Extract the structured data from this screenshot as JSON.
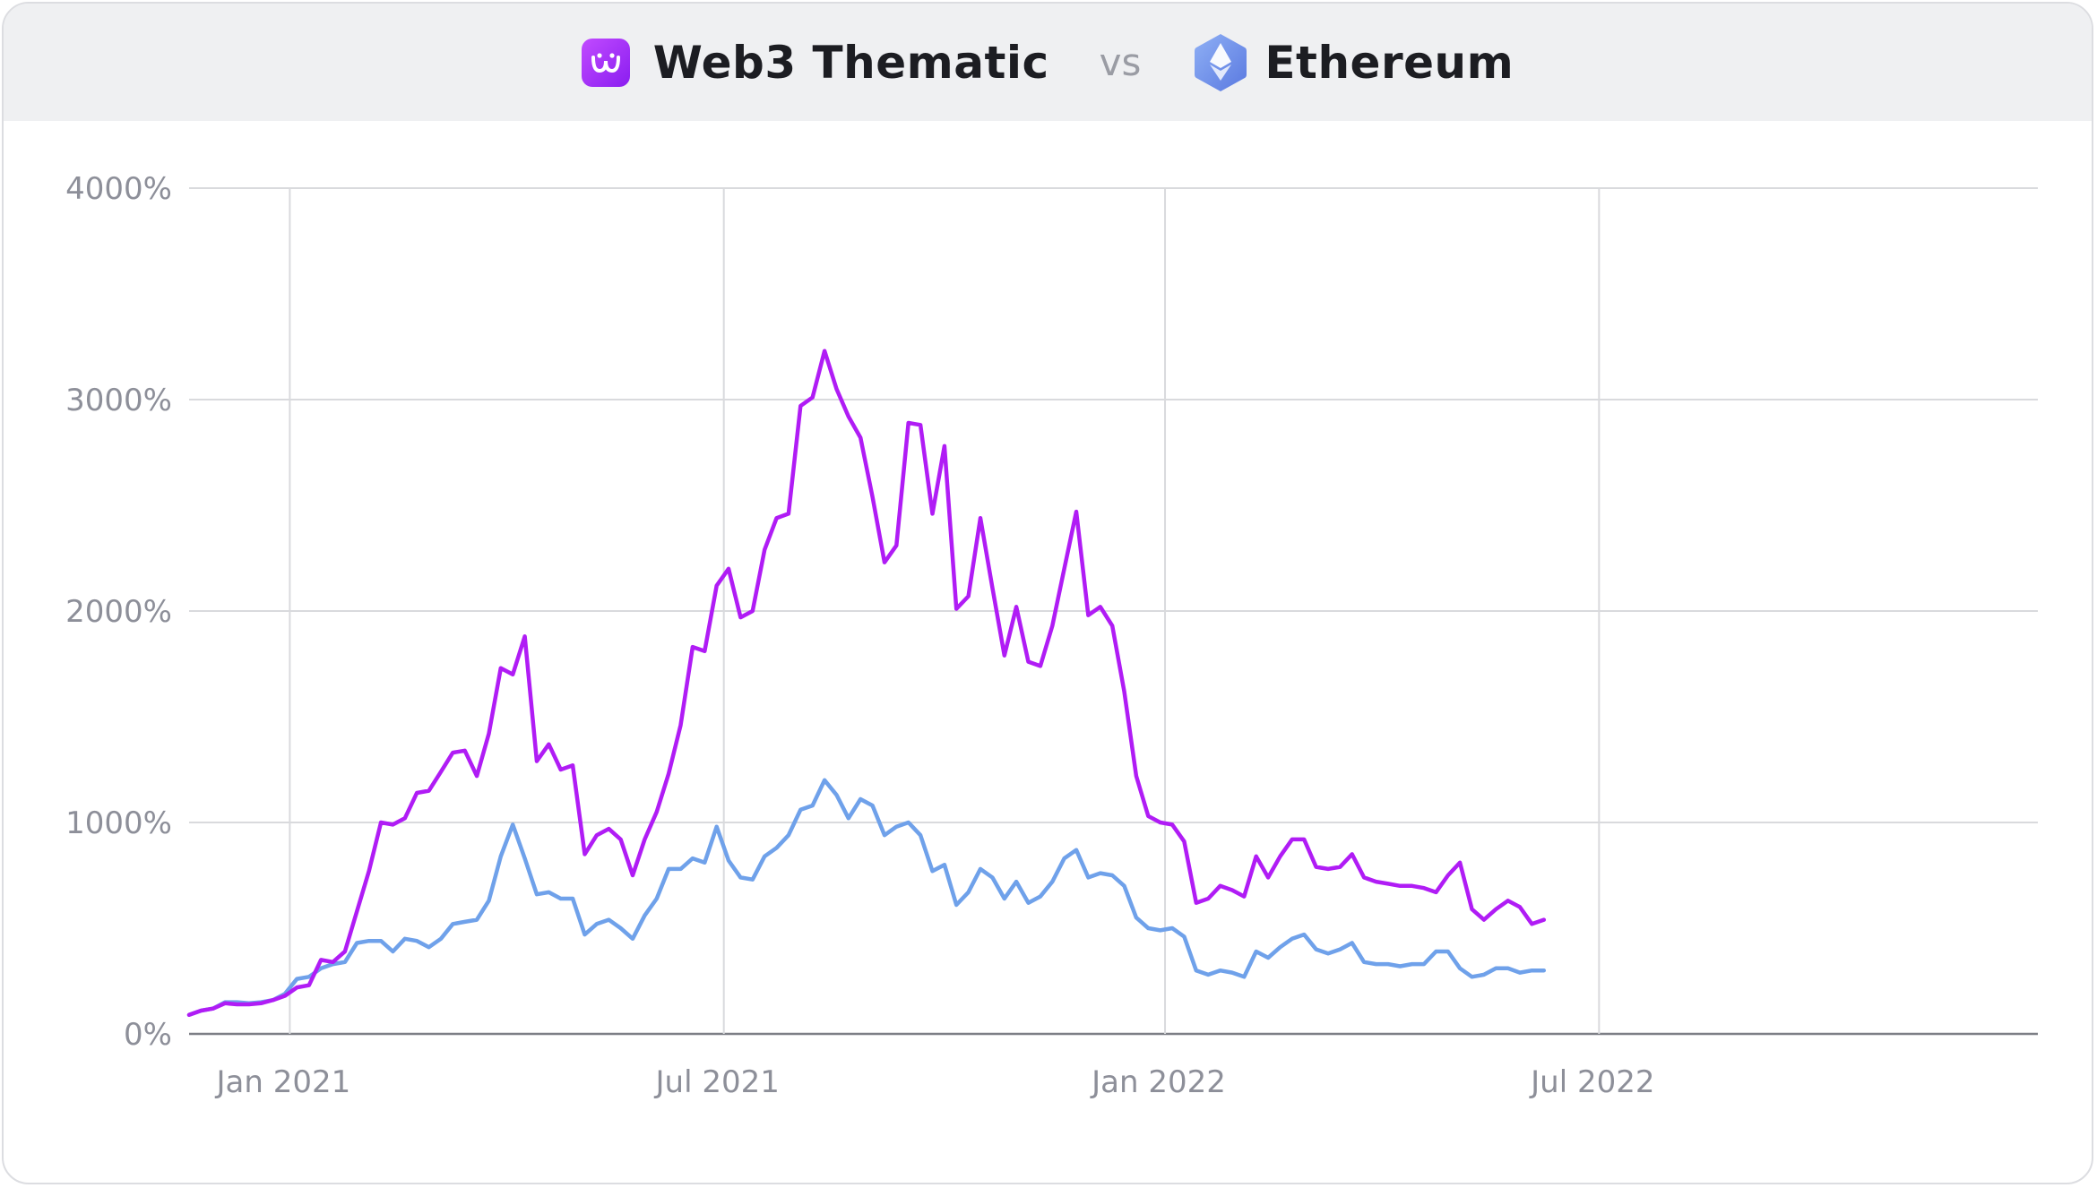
{
  "legend": {
    "series_a_label": "Web3 Thematic",
    "vs_label": "vs",
    "series_b_label": "Ethereum",
    "series_a_icon": "web3-thematic-logo-icon",
    "series_b_icon": "ethereum-logo-icon"
  },
  "chart_data": {
    "type": "line",
    "title": "",
    "xlabel": "",
    "ylabel": "",
    "ylim": [
      0,
      4000
    ],
    "y_ticks": [
      0,
      1000,
      2000,
      3000,
      4000
    ],
    "y_tick_labels": [
      "0%",
      "1000%",
      "2000%",
      "3000%",
      "4000%"
    ],
    "x_range": [
      "2020-11-20",
      "2022-12-31"
    ],
    "x_ticks": [
      {
        "date": "2021-01-01",
        "label": "Jan 2021"
      },
      {
        "date": "2021-07-01",
        "label": "Jul 2021"
      },
      {
        "date": "2022-01-01",
        "label": "Jan 2022"
      },
      {
        "date": "2022-07-01",
        "label": "Jul 2022"
      }
    ],
    "grid": true,
    "series": [
      {
        "name": "Web3 Thematic",
        "color": "#b01cf5",
        "points": [
          [
            "2020-11-20",
            90
          ],
          [
            "2020-11-25",
            110
          ],
          [
            "2020-11-30",
            120
          ],
          [
            "2020-12-05",
            145
          ],
          [
            "2020-12-10",
            140
          ],
          [
            "2020-12-15",
            140
          ],
          [
            "2020-12-20",
            145
          ],
          [
            "2020-12-25",
            160
          ],
          [
            "2020-12-30",
            180
          ],
          [
            "2021-01-04",
            220
          ],
          [
            "2021-01-09",
            230
          ],
          [
            "2021-01-14",
            350
          ],
          [
            "2021-01-19",
            340
          ],
          [
            "2021-01-24",
            390
          ],
          [
            "2021-01-29",
            580
          ],
          [
            "2021-02-03",
            770
          ],
          [
            "2021-02-08",
            1000
          ],
          [
            "2021-02-13",
            990
          ],
          [
            "2021-02-18",
            1020
          ],
          [
            "2021-02-23",
            1140
          ],
          [
            "2021-02-28",
            1150
          ],
          [
            "2021-03-05",
            1240
          ],
          [
            "2021-03-10",
            1330
          ],
          [
            "2021-03-15",
            1340
          ],
          [
            "2021-03-20",
            1220
          ],
          [
            "2021-03-25",
            1420
          ],
          [
            "2021-03-30",
            1730
          ],
          [
            "2021-04-04",
            1700
          ],
          [
            "2021-04-09",
            1880
          ],
          [
            "2021-04-14",
            1290
          ],
          [
            "2021-04-19",
            1370
          ],
          [
            "2021-04-24",
            1250
          ],
          [
            "2021-04-29",
            1270
          ],
          [
            "2021-05-04",
            850
          ],
          [
            "2021-05-09",
            940
          ],
          [
            "2021-05-14",
            970
          ],
          [
            "2021-05-19",
            920
          ],
          [
            "2021-05-24",
            750
          ],
          [
            "2021-05-29",
            920
          ],
          [
            "2021-06-03",
            1050
          ],
          [
            "2021-06-08",
            1230
          ],
          [
            "2021-06-13",
            1460
          ],
          [
            "2021-06-18",
            1830
          ],
          [
            "2021-06-23",
            1810
          ],
          [
            "2021-06-28",
            2120
          ],
          [
            "2021-07-03",
            2200
          ],
          [
            "2021-07-08",
            1970
          ],
          [
            "2021-07-13",
            2000
          ],
          [
            "2021-07-18",
            2290
          ],
          [
            "2021-07-23",
            2440
          ],
          [
            "2021-07-28",
            2460
          ],
          [
            "2021-08-02",
            2970
          ],
          [
            "2021-08-07",
            3010
          ],
          [
            "2021-08-12",
            3230
          ],
          [
            "2021-08-17",
            3050
          ],
          [
            "2021-08-22",
            2920
          ],
          [
            "2021-08-27",
            2820
          ],
          [
            "2021-09-01",
            2540
          ],
          [
            "2021-09-06",
            2230
          ],
          [
            "2021-09-11",
            2310
          ],
          [
            "2021-09-16",
            2890
          ],
          [
            "2021-09-21",
            2880
          ],
          [
            "2021-09-26",
            2460
          ],
          [
            "2021-10-01",
            2780
          ],
          [
            "2021-10-06",
            2010
          ],
          [
            "2021-10-11",
            2070
          ],
          [
            "2021-10-16",
            2440
          ],
          [
            "2021-10-21",
            2110
          ],
          [
            "2021-10-26",
            1790
          ],
          [
            "2021-10-31",
            2020
          ],
          [
            "2021-11-05",
            1760
          ],
          [
            "2021-11-10",
            1740
          ],
          [
            "2021-11-15",
            1930
          ],
          [
            "2021-11-20",
            2200
          ],
          [
            "2021-11-25",
            2470
          ],
          [
            "2021-11-30",
            1980
          ],
          [
            "2021-12-05",
            2020
          ],
          [
            "2021-12-10",
            1930
          ],
          [
            "2021-12-15",
            1620
          ],
          [
            "2021-12-20",
            1220
          ],
          [
            "2021-12-25",
            1030
          ],
          [
            "2021-12-30",
            1000
          ],
          [
            "2022-01-04",
            990
          ],
          [
            "2022-01-09",
            910
          ],
          [
            "2022-01-14",
            620
          ],
          [
            "2022-01-19",
            640
          ],
          [
            "2022-01-24",
            700
          ],
          [
            "2022-01-29",
            680
          ],
          [
            "2022-02-03",
            650
          ],
          [
            "2022-02-08",
            840
          ],
          [
            "2022-02-13",
            740
          ],
          [
            "2022-02-18",
            840
          ],
          [
            "2022-02-23",
            920
          ],
          [
            "2022-02-28",
            920
          ],
          [
            "2022-03-05",
            790
          ],
          [
            "2022-03-10",
            780
          ],
          [
            "2022-03-15",
            790
          ],
          [
            "2022-03-20",
            850
          ],
          [
            "2022-03-25",
            740
          ],
          [
            "2022-03-30",
            720
          ],
          [
            "2022-04-04",
            710
          ],
          [
            "2022-04-09",
            700
          ],
          [
            "2022-04-14",
            700
          ],
          [
            "2022-04-19",
            690
          ],
          [
            "2022-04-24",
            670
          ],
          [
            "2022-04-29",
            750
          ],
          [
            "2022-05-04",
            810
          ],
          [
            "2022-05-09",
            590
          ],
          [
            "2022-05-14",
            540
          ],
          [
            "2022-05-19",
            590
          ],
          [
            "2022-05-24",
            630
          ],
          [
            "2022-05-29",
            600
          ],
          [
            "2022-06-03",
            520
          ],
          [
            "2022-06-08",
            540
          ]
        ]
      },
      {
        "name": "Ethereum",
        "color": "#6fa1ea",
        "points": [
          [
            "2020-11-20",
            90
          ],
          [
            "2020-11-25",
            110
          ],
          [
            "2020-11-30",
            120
          ],
          [
            "2020-12-05",
            150
          ],
          [
            "2020-12-10",
            150
          ],
          [
            "2020-12-15",
            145
          ],
          [
            "2020-12-20",
            150
          ],
          [
            "2020-12-25",
            160
          ],
          [
            "2020-12-30",
            190
          ],
          [
            "2021-01-04",
            260
          ],
          [
            "2021-01-09",
            270
          ],
          [
            "2021-01-14",
            310
          ],
          [
            "2021-01-19",
            330
          ],
          [
            "2021-01-24",
            340
          ],
          [
            "2021-01-29",
            430
          ],
          [
            "2021-02-03",
            440
          ],
          [
            "2021-02-08",
            440
          ],
          [
            "2021-02-13",
            390
          ],
          [
            "2021-02-18",
            450
          ],
          [
            "2021-02-23",
            440
          ],
          [
            "2021-02-28",
            410
          ],
          [
            "2021-03-05",
            450
          ],
          [
            "2021-03-10",
            520
          ],
          [
            "2021-03-15",
            530
          ],
          [
            "2021-03-20",
            540
          ],
          [
            "2021-03-25",
            630
          ],
          [
            "2021-03-30",
            840
          ],
          [
            "2021-04-04",
            990
          ],
          [
            "2021-04-09",
            830
          ],
          [
            "2021-04-14",
            660
          ],
          [
            "2021-04-19",
            670
          ],
          [
            "2021-04-24",
            640
          ],
          [
            "2021-04-29",
            640
          ],
          [
            "2021-05-04",
            470
          ],
          [
            "2021-05-09",
            520
          ],
          [
            "2021-05-14",
            540
          ],
          [
            "2021-05-19",
            500
          ],
          [
            "2021-05-24",
            450
          ],
          [
            "2021-05-29",
            560
          ],
          [
            "2021-06-03",
            640
          ],
          [
            "2021-06-08",
            780
          ],
          [
            "2021-06-13",
            780
          ],
          [
            "2021-06-18",
            830
          ],
          [
            "2021-06-23",
            810
          ],
          [
            "2021-06-28",
            980
          ],
          [
            "2021-07-03",
            820
          ],
          [
            "2021-07-08",
            740
          ],
          [
            "2021-07-13",
            730
          ],
          [
            "2021-07-18",
            840
          ],
          [
            "2021-07-23",
            880
          ],
          [
            "2021-07-28",
            940
          ],
          [
            "2021-08-02",
            1060
          ],
          [
            "2021-08-07",
            1080
          ],
          [
            "2021-08-12",
            1200
          ],
          [
            "2021-08-17",
            1130
          ],
          [
            "2021-08-22",
            1020
          ],
          [
            "2021-08-27",
            1110
          ],
          [
            "2021-09-01",
            1080
          ],
          [
            "2021-09-06",
            940
          ],
          [
            "2021-09-11",
            980
          ],
          [
            "2021-09-16",
            1000
          ],
          [
            "2021-09-21",
            940
          ],
          [
            "2021-09-26",
            770
          ],
          [
            "2021-10-01",
            800
          ],
          [
            "2021-10-06",
            610
          ],
          [
            "2021-10-11",
            670
          ],
          [
            "2021-10-16",
            780
          ],
          [
            "2021-10-21",
            740
          ],
          [
            "2021-10-26",
            640
          ],
          [
            "2021-10-31",
            720
          ],
          [
            "2021-11-05",
            620
          ],
          [
            "2021-11-10",
            650
          ],
          [
            "2021-11-15",
            720
          ],
          [
            "2021-11-20",
            830
          ],
          [
            "2021-11-25",
            870
          ],
          [
            "2021-11-30",
            740
          ],
          [
            "2021-12-05",
            760
          ],
          [
            "2021-12-10",
            750
          ],
          [
            "2021-12-15",
            700
          ],
          [
            "2021-12-20",
            550
          ],
          [
            "2021-12-25",
            500
          ],
          [
            "2021-12-30",
            490
          ],
          [
            "2022-01-04",
            500
          ],
          [
            "2022-01-09",
            460
          ],
          [
            "2022-01-14",
            300
          ],
          [
            "2022-01-19",
            280
          ],
          [
            "2022-01-24",
            300
          ],
          [
            "2022-01-29",
            290
          ],
          [
            "2022-02-03",
            270
          ],
          [
            "2022-02-08",
            390
          ],
          [
            "2022-02-13",
            360
          ],
          [
            "2022-02-18",
            410
          ],
          [
            "2022-02-23",
            450
          ],
          [
            "2022-02-28",
            470
          ],
          [
            "2022-03-05",
            400
          ],
          [
            "2022-03-10",
            380
          ],
          [
            "2022-03-15",
            400
          ],
          [
            "2022-03-20",
            430
          ],
          [
            "2022-03-25",
            340
          ],
          [
            "2022-03-30",
            330
          ],
          [
            "2022-04-04",
            330
          ],
          [
            "2022-04-09",
            320
          ],
          [
            "2022-04-14",
            330
          ],
          [
            "2022-04-19",
            330
          ],
          [
            "2022-04-24",
            390
          ],
          [
            "2022-04-29",
            390
          ],
          [
            "2022-05-04",
            310
          ],
          [
            "2022-05-09",
            270
          ],
          [
            "2022-05-14",
            280
          ],
          [
            "2022-05-19",
            310
          ],
          [
            "2022-05-24",
            310
          ],
          [
            "2022-05-29",
            290
          ],
          [
            "2022-06-03",
            300
          ],
          [
            "2022-06-08",
            300
          ]
        ]
      }
    ]
  }
}
